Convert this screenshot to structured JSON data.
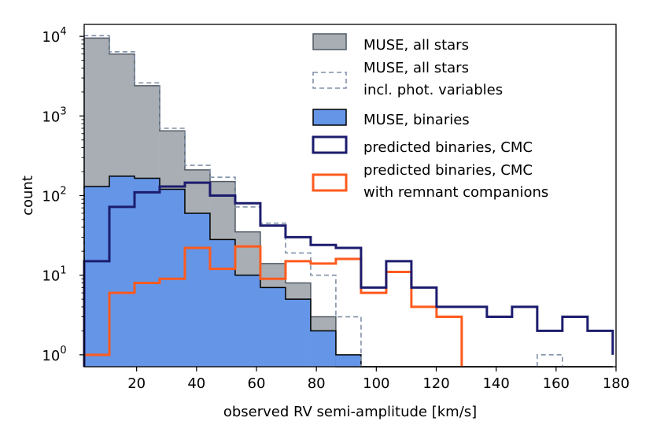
{
  "chart_data": {
    "type": "histogram",
    "xlabel": "observed RV semi-amplitude [km/s]",
    "ylabel": "count",
    "xlim": [
      2.5,
      180
    ],
    "ylim_log10": [
      -0.15,
      4.15
    ],
    "yscale": "log",
    "grid": false,
    "legend_position": "upper right",
    "x_ticks": [
      20,
      40,
      60,
      80,
      100,
      120,
      140,
      160,
      180
    ],
    "y_ticks": [
      {
        "value": 1,
        "base": "10",
        "exp": "0"
      },
      {
        "value": 10,
        "base": "10",
        "exp": "1"
      },
      {
        "value": 100,
        "base": "10",
        "exp": "2"
      },
      {
        "value": 1000,
        "base": "10",
        "exp": "3"
      },
      {
        "value": 10000,
        "base": "10",
        "exp": "4"
      }
    ],
    "bin_edges": [
      2.5,
      10.9,
      19.3,
      27.7,
      36.1,
      44.5,
      52.9,
      61.3,
      69.7,
      78.1,
      86.5,
      94.9,
      103.3,
      111.7,
      120.1,
      128.5,
      136.9,
      145.3,
      153.7,
      162.1,
      170.5,
      178.9
    ],
    "series": [
      {
        "name": "MUSE, all stars",
        "style": "filled",
        "fill": "#a8aeb3",
        "stroke": "#505a64",
        "values": [
          9500,
          6000,
          2400,
          650,
          210,
          150,
          35,
          14,
          8,
          3,
          0,
          0,
          0,
          0,
          0,
          0,
          0,
          0,
          0,
          0,
          0
        ]
      },
      {
        "name": "MUSE, all stars incl. phot. variables",
        "style": "dashed",
        "stroke": "#8090a8",
        "values": [
          10200,
          6400,
          2600,
          700,
          240,
          170,
          72,
          45,
          19,
          10,
          3,
          0,
          0,
          0,
          0,
          0,
          0,
          0,
          1,
          0,
          0
        ]
      },
      {
        "name": "MUSE, binaries",
        "style": "filled",
        "fill": "#6495e6",
        "stroke": "#000000",
        "values": [
          130,
          175,
          165,
          120,
          60,
          28,
          10,
          7,
          5,
          2,
          1,
          0,
          0,
          0,
          0,
          0,
          0,
          0,
          0,
          0,
          0
        ]
      },
      {
        "name": "predicted binaries, CMC",
        "style": "step",
        "stroke": "#1c1c6e",
        "values": [
          15,
          72,
          110,
          130,
          145,
          100,
          80,
          42,
          30,
          24,
          22,
          7,
          15,
          7,
          4,
          4,
          3,
          4,
          2,
          3,
          2,
          1
        ]
      },
      {
        "name": "predicted binaries, CMC with remnant companions",
        "style": "step",
        "stroke": "#ff5a1e",
        "values": [
          1,
          6,
          8,
          9,
          22,
          12,
          23,
          9,
          15,
          14,
          16,
          6,
          11,
          4,
          3,
          0,
          0,
          0,
          0,
          0,
          0,
          0
        ]
      }
    ],
    "legend": [
      {
        "key": "all",
        "text": [
          "MUSE, all stars"
        ]
      },
      {
        "key": "allvar",
        "text": [
          "MUSE, all stars",
          "incl. phot. variables"
        ]
      },
      {
        "key": "bin",
        "text": [
          "MUSE, binaries"
        ]
      },
      {
        "key": "cmc",
        "text": [
          "predicted binaries, CMC"
        ]
      },
      {
        "key": "rem",
        "text": [
          "predicted binaries, CMC",
          "with remnant companions"
        ]
      }
    ]
  }
}
